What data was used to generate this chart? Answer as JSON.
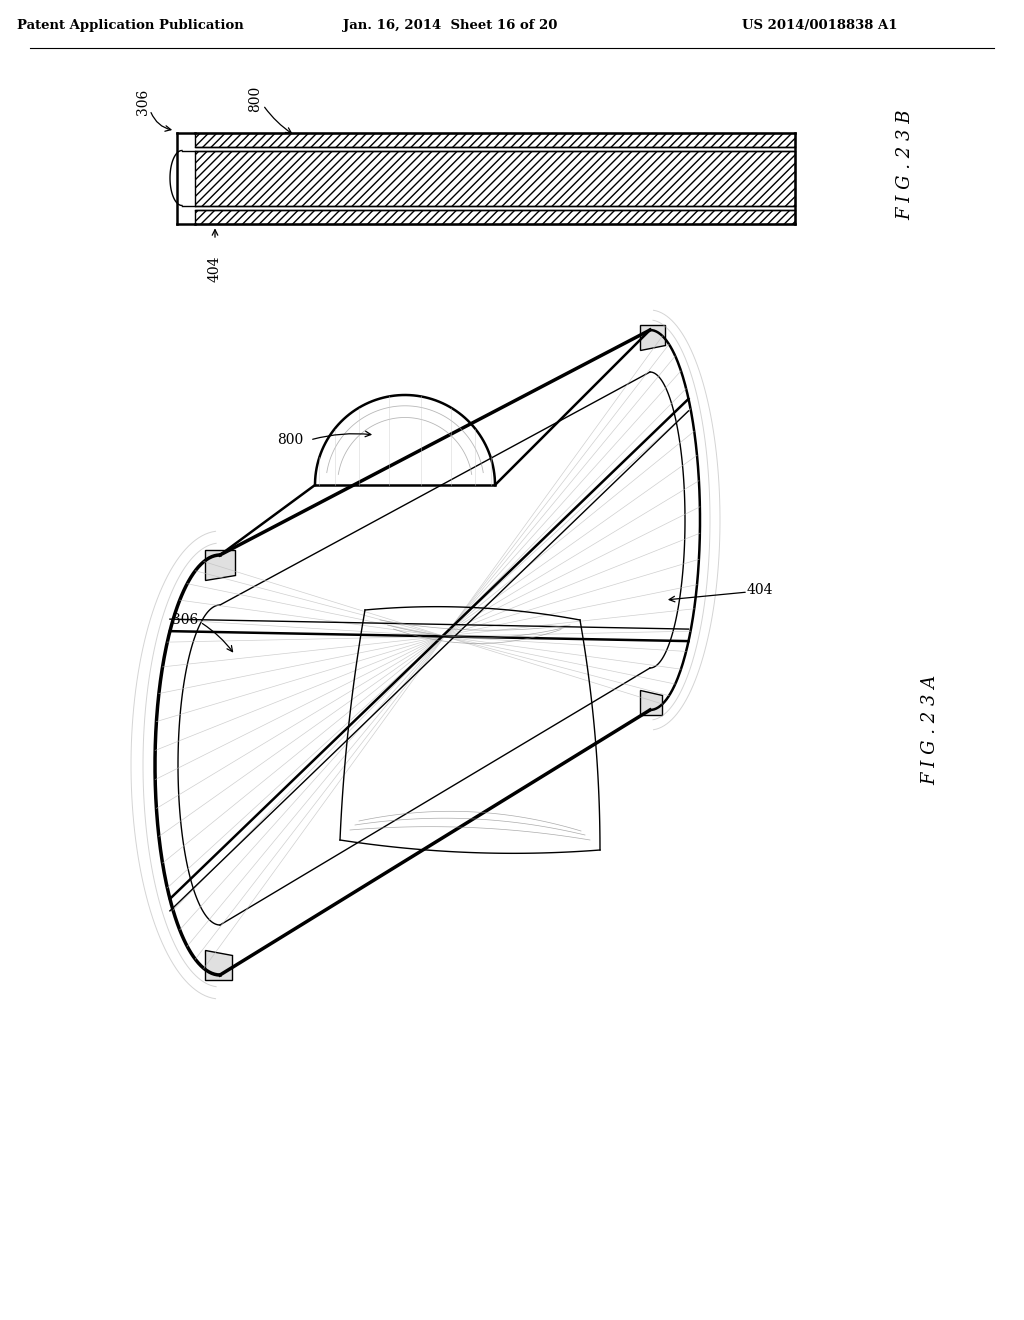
{
  "header_left": "Patent Application Publication",
  "header_center": "Jan. 16, 2014  Sheet 16 of 20",
  "header_right": "US 2014/0018838 A1",
  "fig_top_label": "F I G . 2 3 B",
  "fig_bottom_label": "F I G . 2 3 A",
  "bg": "#ffffff",
  "lc": "#000000"
}
